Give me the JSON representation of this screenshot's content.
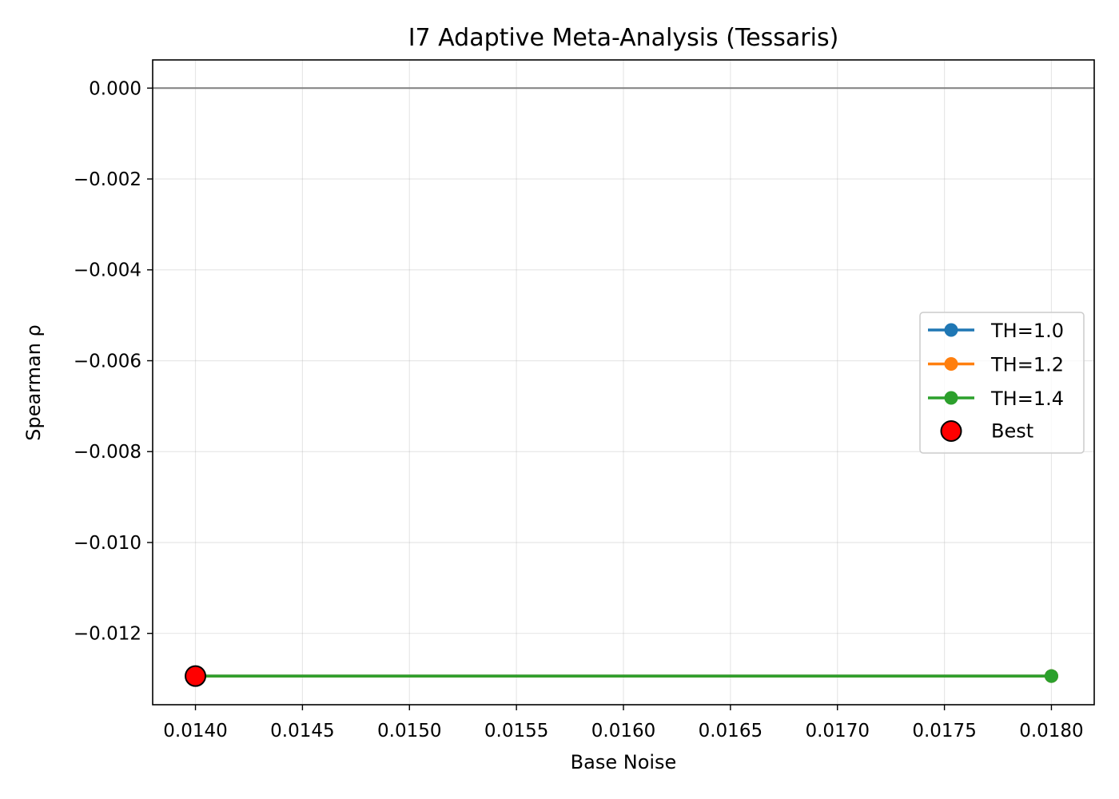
{
  "chart_data": {
    "type": "line",
    "title": "I7 Adaptive Meta-Analysis (Tessaris)",
    "xlabel": "Base Noise",
    "ylabel": "Spearman ρ",
    "xlim": [
      0.0138,
      0.0182
    ],
    "ylim": [
      -0.01357,
      0.00062
    ],
    "x_ticks": [
      0.014,
      0.0145,
      0.015,
      0.0155,
      0.016,
      0.0165,
      0.017,
      0.0175,
      0.018
    ],
    "x_tick_labels": [
      "0.0140",
      "0.0145",
      "0.0150",
      "0.0155",
      "0.0160",
      "0.0165",
      "0.0170",
      "0.0175",
      "0.0180"
    ],
    "y_ticks": [
      0.0,
      -0.002,
      -0.004,
      -0.006,
      -0.008,
      -0.01,
      -0.012
    ],
    "y_tick_labels": [
      "0.000",
      "−0.002",
      "−0.004",
      "−0.006",
      "−0.008",
      "−0.010",
      "−0.012"
    ],
    "grid": true,
    "reference_line": {
      "y": 0.0,
      "color": "#808080"
    },
    "legend_position": "center-right",
    "series": [
      {
        "name": "TH=1.0",
        "color": "#1f77b4",
        "x": [
          0.014,
          0.018
        ],
        "y": [
          -0.01294,
          -0.01294
        ]
      },
      {
        "name": "TH=1.2",
        "color": "#ff7f0e",
        "x": [
          0.014,
          0.018
        ],
        "y": [
          -0.01294,
          -0.01294
        ]
      },
      {
        "name": "TH=1.4",
        "color": "#2ca02c",
        "x": [
          0.014,
          0.018
        ],
        "y": [
          -0.01294,
          -0.01294
        ]
      }
    ],
    "best": {
      "name": "Best",
      "x": 0.014,
      "y": -0.01294,
      "color": "#ff0000",
      "edge_color": "#000000"
    }
  }
}
